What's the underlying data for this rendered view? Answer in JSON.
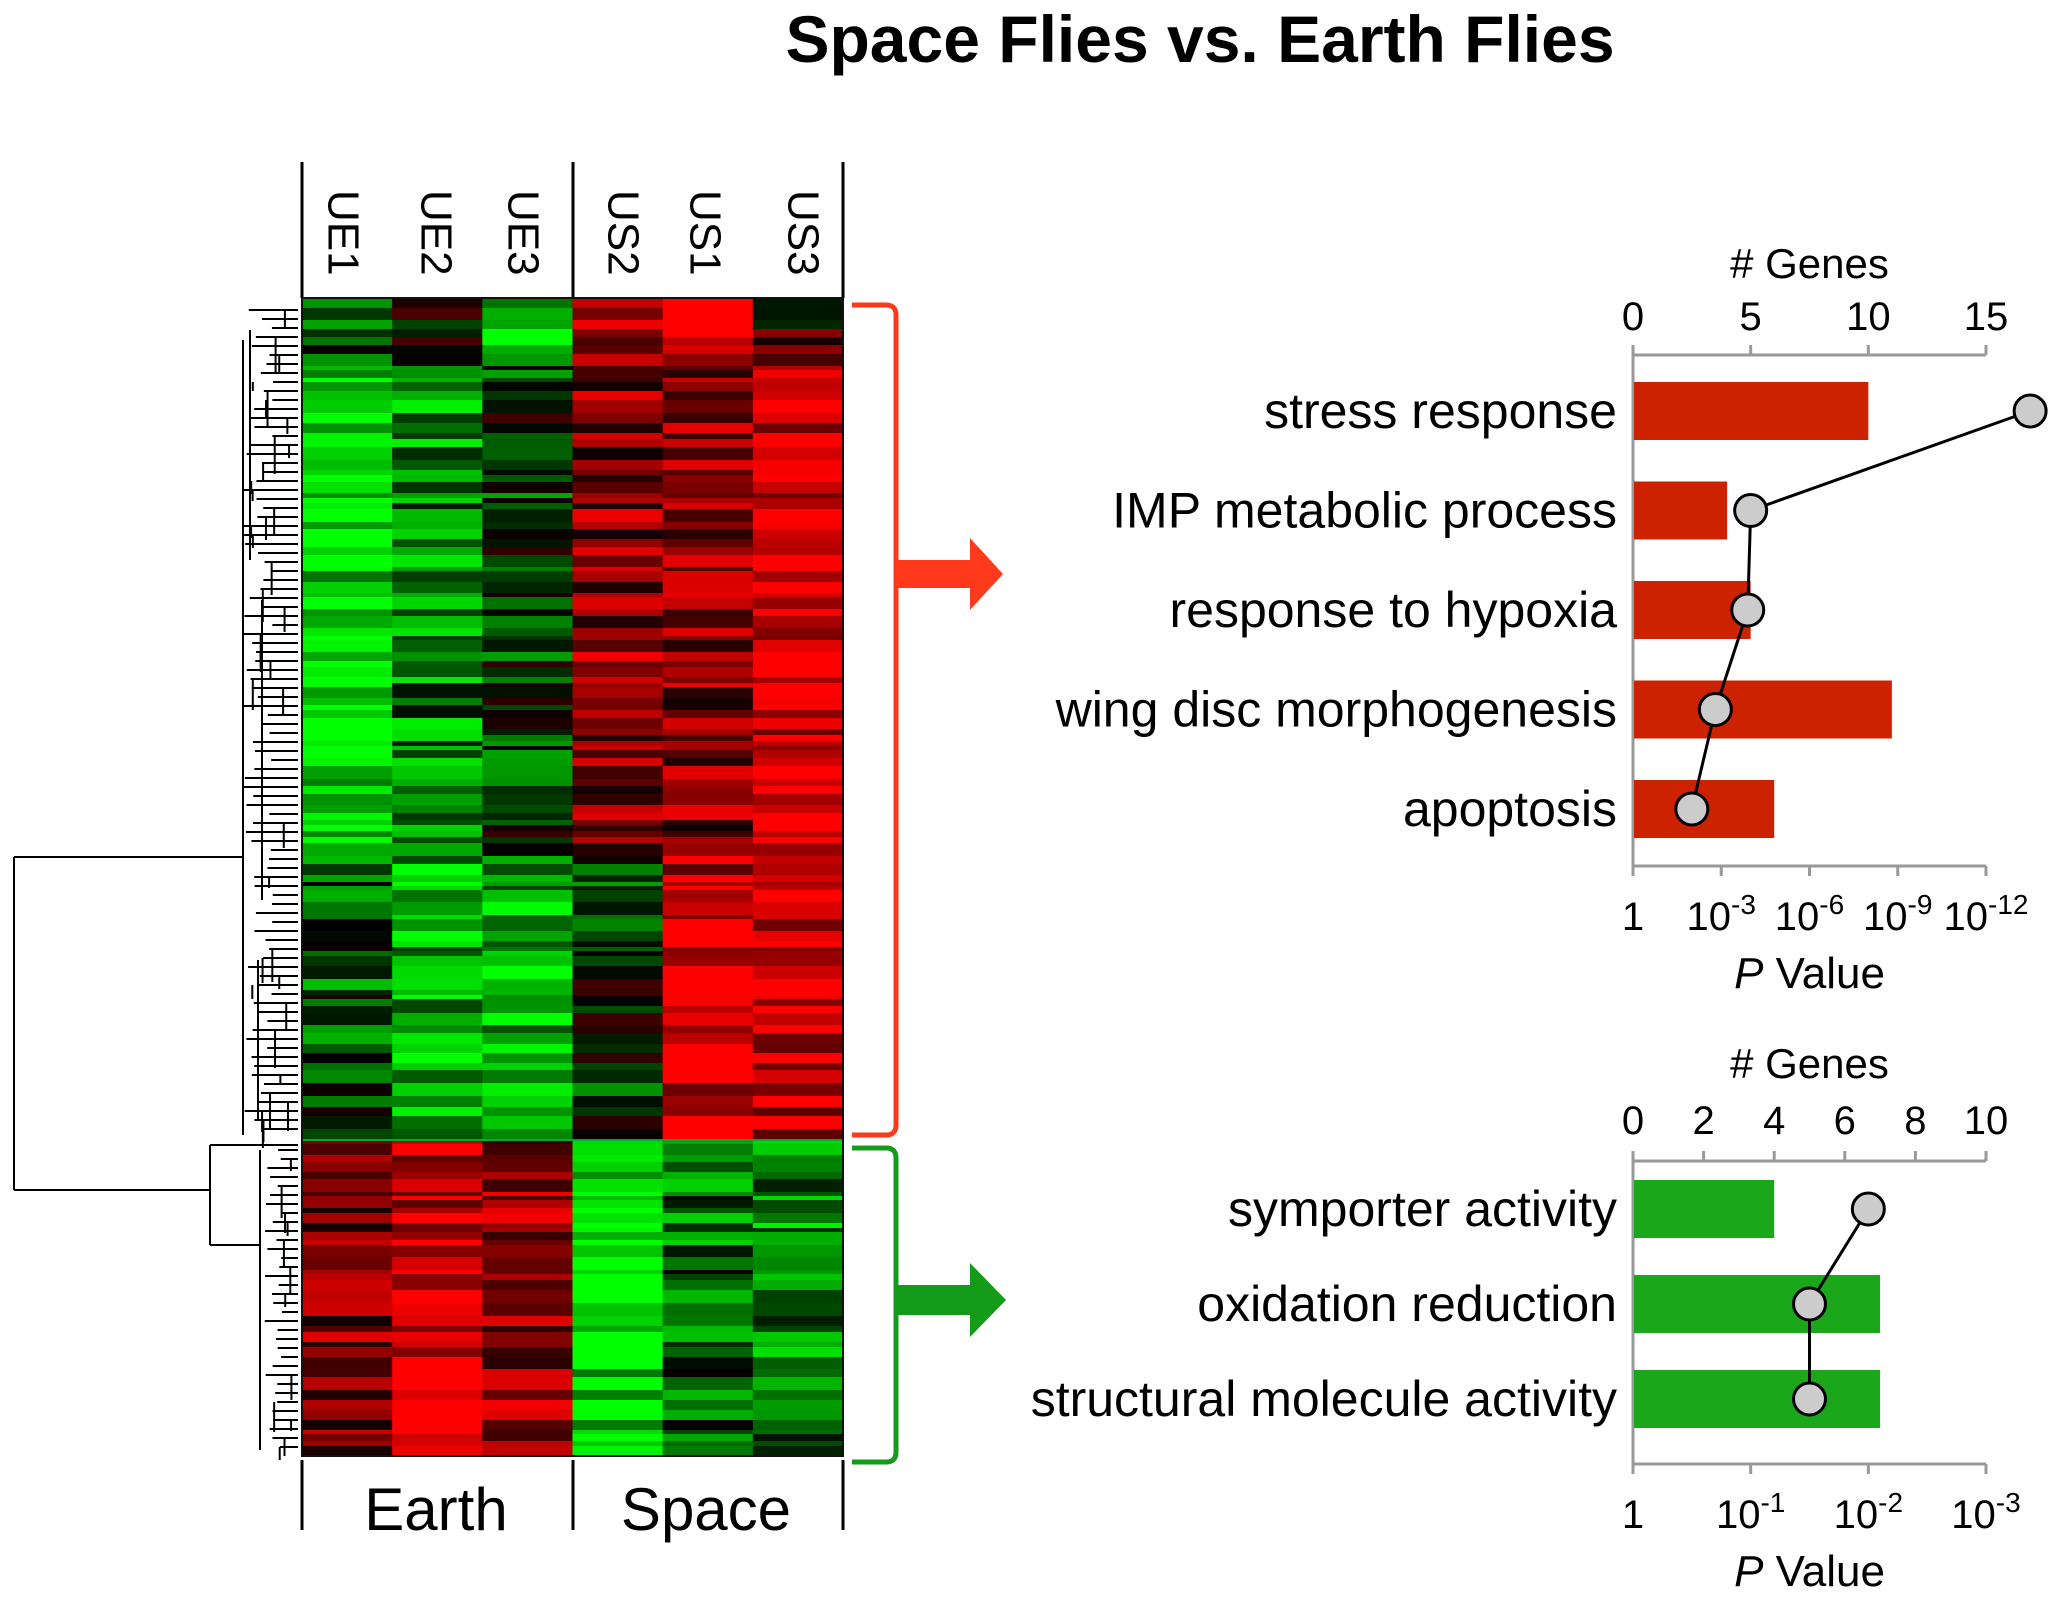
{
  "title": "Space Flies vs. Earth Flies",
  "heatmap": {
    "columns": [
      "UE1",
      "UE2",
      "UE3",
      "US2",
      "US1",
      "US3"
    ],
    "groups": [
      "Earth",
      "Space"
    ],
    "colors": {
      "up": "#ff1a1a",
      "down": "#1aff1a",
      "neutral": "#000000"
    }
  },
  "arrow_colors": {
    "red_cluster": "#ff3a1c",
    "green_cluster": "#149b1a"
  },
  "chart_data": [
    {
      "type": "bar",
      "cluster": "red",
      "title": "",
      "categories": [
        "stress response",
        "IMP metabolic process",
        "response to hypoxia",
        "wing disc morphogenesis",
        "apoptosis"
      ],
      "series": [
        {
          "name": "",
          "kind": "bar",
          "axis": "top",
          "color": "#cc2200",
          "values": [
            10,
            4,
            5,
            11,
            6
          ]
        },
        {
          "name": "",
          "kind": "line",
          "axis": "bottom",
          "color": "#cccccc",
          "values": [
            13.5,
            4.0,
            3.9,
            2.8,
            2.0
          ]
        }
      ],
      "top_axis": {
        "label": "# Genes",
        "range": [
          0,
          15
        ],
        "ticks": [
          "0",
          "5",
          "10",
          "15"
        ]
      },
      "bottom_axis": {
        "label_italic": "P",
        "label_rest": " Value",
        "scale": "-log10",
        "range": [
          0,
          12
        ],
        "ticks": [
          {
            "base": "1",
            "exp": ""
          },
          {
            "base": "10",
            "exp": "-3"
          },
          {
            "base": "10",
            "exp": "-6"
          },
          {
            "base": "10",
            "exp": "-9"
          },
          {
            "base": "10",
            "exp": "-12"
          }
        ]
      }
    },
    {
      "type": "bar",
      "cluster": "green",
      "title": "",
      "categories": [
        "symporter activity",
        "oxidation reduction",
        "structural molecule activity"
      ],
      "series": [
        {
          "name": "",
          "kind": "bar",
          "axis": "top",
          "color": "#1aa81a",
          "values": [
            4,
            7,
            7
          ]
        },
        {
          "name": "",
          "kind": "line",
          "axis": "bottom",
          "color": "#cccccc",
          "values": [
            2.0,
            1.5,
            1.5
          ]
        }
      ],
      "top_axis": {
        "label": "# Genes",
        "range": [
          0,
          10
        ],
        "ticks": [
          "0",
          "2",
          "4",
          "6",
          "8",
          "10"
        ]
      },
      "bottom_axis": {
        "label_italic": "P",
        "label_rest": " Value",
        "scale": "-log10",
        "range": [
          0,
          3
        ],
        "ticks": [
          {
            "base": "1",
            "exp": ""
          },
          {
            "base": "10",
            "exp": "-1"
          },
          {
            "base": "10",
            "exp": "-2"
          },
          {
            "base": "10",
            "exp": "-3"
          }
        ]
      }
    }
  ]
}
